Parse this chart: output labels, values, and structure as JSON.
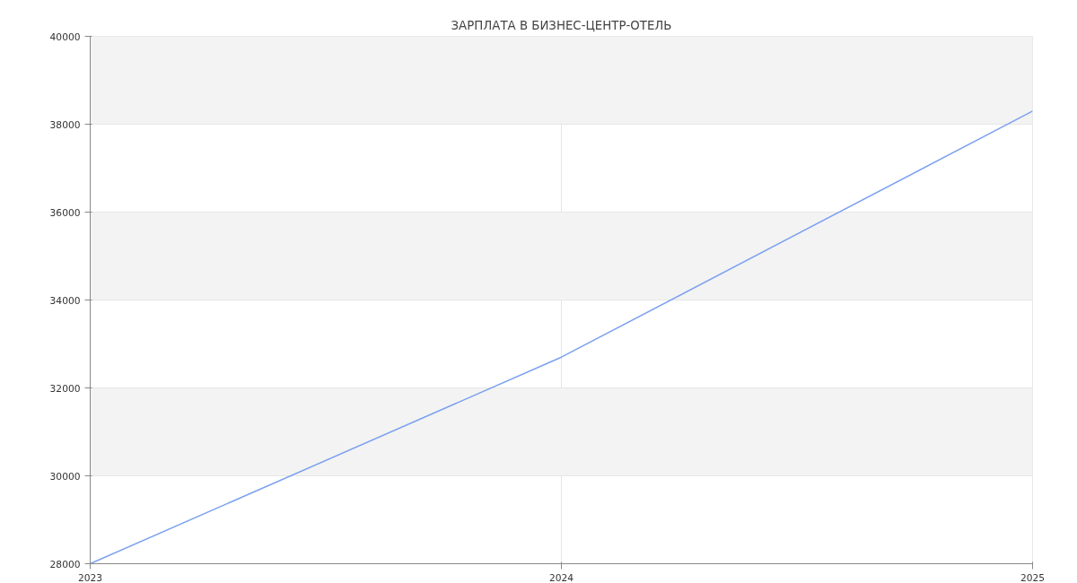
{
  "chart_data": {
    "type": "line",
    "title": "ЗАРПЛАТА В БИЗНЕС-ЦЕНТР-ОТЕЛЬ",
    "x": [
      2023,
      2024,
      2025
    ],
    "series": [
      {
        "color": "#7aa0f0",
        "values": [
          28000,
          32700,
          38300
        ]
      }
    ],
    "xlim": [
      2023,
      2025
    ],
    "xticks": [
      2023,
      2024,
      2025
    ],
    "ylim": [
      28000,
      40000
    ],
    "yticks": [
      28000,
      30000,
      32000,
      34000,
      36000,
      38000,
      40000
    ],
    "grid": true,
    "marker": "none",
    "line_style": "solid"
  }
}
